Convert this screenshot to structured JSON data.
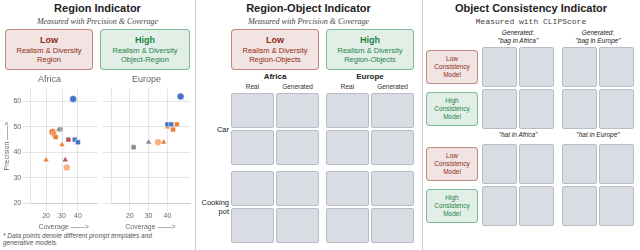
{
  "chart_data": [
    {
      "type": "scatter",
      "title": "Africa",
      "x_label": "Coverage ——>",
      "y_label": "Precision ——>",
      "xlim": [
        10,
        52
      ],
      "ylim": [
        20,
        65
      ],
      "xticks": [
        20,
        30,
        40
      ],
      "yticks": [
        20,
        30,
        40,
        50,
        60
      ],
      "grid": true,
      "series": [
        {
          "color": "#4472C4",
          "marker": "circle",
          "values": [
            [
              37,
              61
            ]
          ]
        },
        {
          "color": "#4472C4",
          "marker": "square",
          "values": [
            [
              38,
              45
            ],
            [
              40,
              44
            ]
          ]
        },
        {
          "color": "#ED7D31",
          "marker": "triangle",
          "values": [
            [
              20,
              37
            ],
            [
              30,
              43
            ]
          ]
        },
        {
          "color": "#ED7D31",
          "marker": "square",
          "values": [
            [
              25,
              47
            ],
            [
              26,
              46
            ]
          ]
        },
        {
          "color": "#ED7D31",
          "marker": "circle",
          "values": [
            [
              24,
              48
            ]
          ]
        },
        {
          "color": "#888888",
          "marker": "triangle",
          "values": [
            [
              28,
              49
            ]
          ]
        },
        {
          "color": "#888888",
          "marker": "square",
          "values": [
            [
              29,
              49
            ]
          ]
        },
        {
          "color": "#C0504D",
          "marker": "triangle",
          "values": [
            [
              32,
              37
            ]
          ]
        },
        {
          "color": "#C0504D",
          "marker": "square",
          "values": [
            [
              34,
              45
            ]
          ]
        },
        {
          "color": "#F4B183",
          "marker": "circle",
          "values": [
            [
              33,
              34
            ]
          ]
        }
      ]
    },
    {
      "type": "scatter",
      "title": "Europe",
      "x_label": "Coverage ——>",
      "xlim": [
        10,
        52
      ],
      "ylim": [
        20,
        65
      ],
      "xticks": [
        20,
        30,
        40
      ],
      "yticks": [
        20,
        30,
        40,
        50,
        60
      ],
      "grid": true,
      "tick_labels": "x",
      "series": [
        {
          "color": "#4472C4",
          "marker": "circle",
          "values": [
            [
              47,
              62
            ]
          ]
        },
        {
          "color": "#4472C4",
          "marker": "square",
          "values": [
            [
              40,
              51
            ],
            [
              42,
              51
            ]
          ]
        },
        {
          "color": "#ED7D31",
          "marker": "triangle",
          "values": [
            [
              38,
              44
            ],
            [
              40,
              50
            ]
          ]
        },
        {
          "color": "#ED7D31",
          "marker": "square",
          "values": [
            [
              43,
              49
            ],
            [
              45,
              51
            ]
          ]
        },
        {
          "color": "#888888",
          "marker": "square",
          "values": [
            [
              22,
              42
            ]
          ]
        },
        {
          "color": "#888888",
          "marker": "triangle",
          "values": [
            [
              30,
              44
            ]
          ]
        },
        {
          "color": "#F4B183",
          "marker": "circle",
          "values": [
            [
              35,
              44
            ]
          ]
        }
      ]
    }
  ],
  "annotations": [
    {
      "title": "Region Indicator",
      "subtitle": "Measured with Precision & Coverage",
      "boxes": [
        {
          "lines": [
            "Low",
            "Realism & Diversity",
            "Region"
          ],
          "color": "#922B21"
        },
        {
          "lines": [
            "High",
            "Realism & Diversity",
            "Object-Region"
          ],
          "color": "#1E8449"
        }
      ],
      "footnote": "* Data points denote different prompt templates and\n  generative models."
    },
    {
      "title": "Region-Object Indicator",
      "subtitle": "Measured with Precision & Coverage",
      "boxes": [
        {
          "lines": [
            "Low",
            "Realism & Diversity",
            "Region-Objects"
          ],
          "color": "#922B21"
        },
        {
          "lines": [
            "High",
            "Realism & Diversity",
            "Region-Objects"
          ],
          "color": "#1E8449"
        }
      ],
      "columns": [
        "Africa",
        "Europe"
      ],
      "column_headers": [
        [
          "Real",
          "Generated"
        ],
        [
          "Real",
          "Generated"
        ]
      ],
      "rows": [
        "Car",
        "Cooking\npot"
      ]
    },
    {
      "title": "Object Consistency Indicator",
      "subtitle": "Measured with CLIPScore",
      "groups": [
        {
          "headers": [
            "Generated:\n\"bag in Africa\"",
            "Generated:\n\"bag in Europe\""
          ],
          "rows": [
            {
              "text": "Low\nConsistency\nModel",
              "color": "#922B21"
            },
            {
              "text": "High\nConsistency\nModel",
              "color": "#1E8449"
            }
          ]
        },
        {
          "headers": [
            "\"hat in Africa\"",
            "\"hat in Europe\""
          ],
          "rows": [
            {
              "text": "Low\nConsistency\nModel",
              "color": "#922B21"
            },
            {
              "text": "High\nConsistency\nModel",
              "color": "#1E8449"
            }
          ]
        }
      ]
    }
  ]
}
